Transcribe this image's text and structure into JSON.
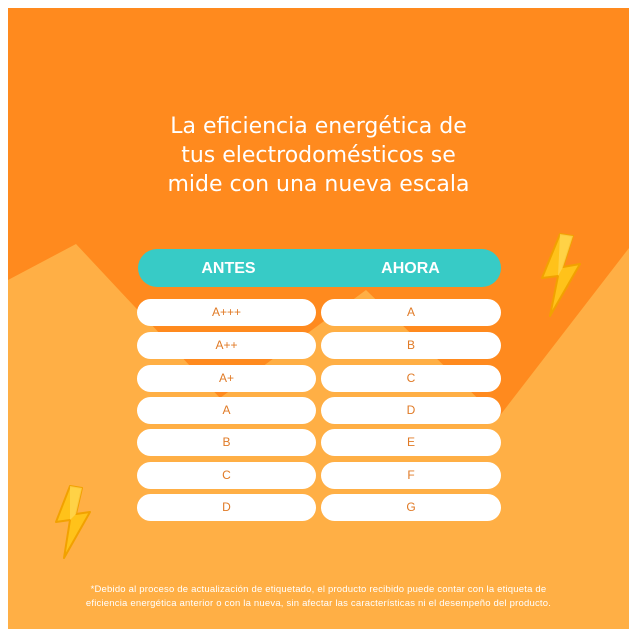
{
  "headline": {
    "line1": "La eficiencia energética de",
    "line2": "tus electrodomésticos se",
    "line3": "mide con una nueva escala"
  },
  "table": {
    "headers": {
      "before": "ANTES",
      "now": "AHORA"
    },
    "rows": [
      {
        "before": "A+++",
        "now": "A"
      },
      {
        "before": "A++",
        "now": "B"
      },
      {
        "before": "A+",
        "now": "C"
      },
      {
        "before": "A",
        "now": "D"
      },
      {
        "before": "B",
        "now": "E"
      },
      {
        "before": "C",
        "now": "F"
      },
      {
        "before": "D",
        "now": "G"
      }
    ]
  },
  "footnote": {
    "line1": "*Debido al proceso de actualización de etiquetado, el producto recibido puede contar con la etiqueta de",
    "line2": "eficiencia energética anterior o con la nueva, sin afectar las características ni el desempeño del producto."
  },
  "colors": {
    "orange_dark": "#ff8a1e",
    "orange_light": "#ffaf45",
    "teal": "#37cbc6",
    "pill_text": "#e07a26",
    "bolt": "#ffc21a"
  },
  "icons": [
    "lightning-bolt-icon"
  ]
}
